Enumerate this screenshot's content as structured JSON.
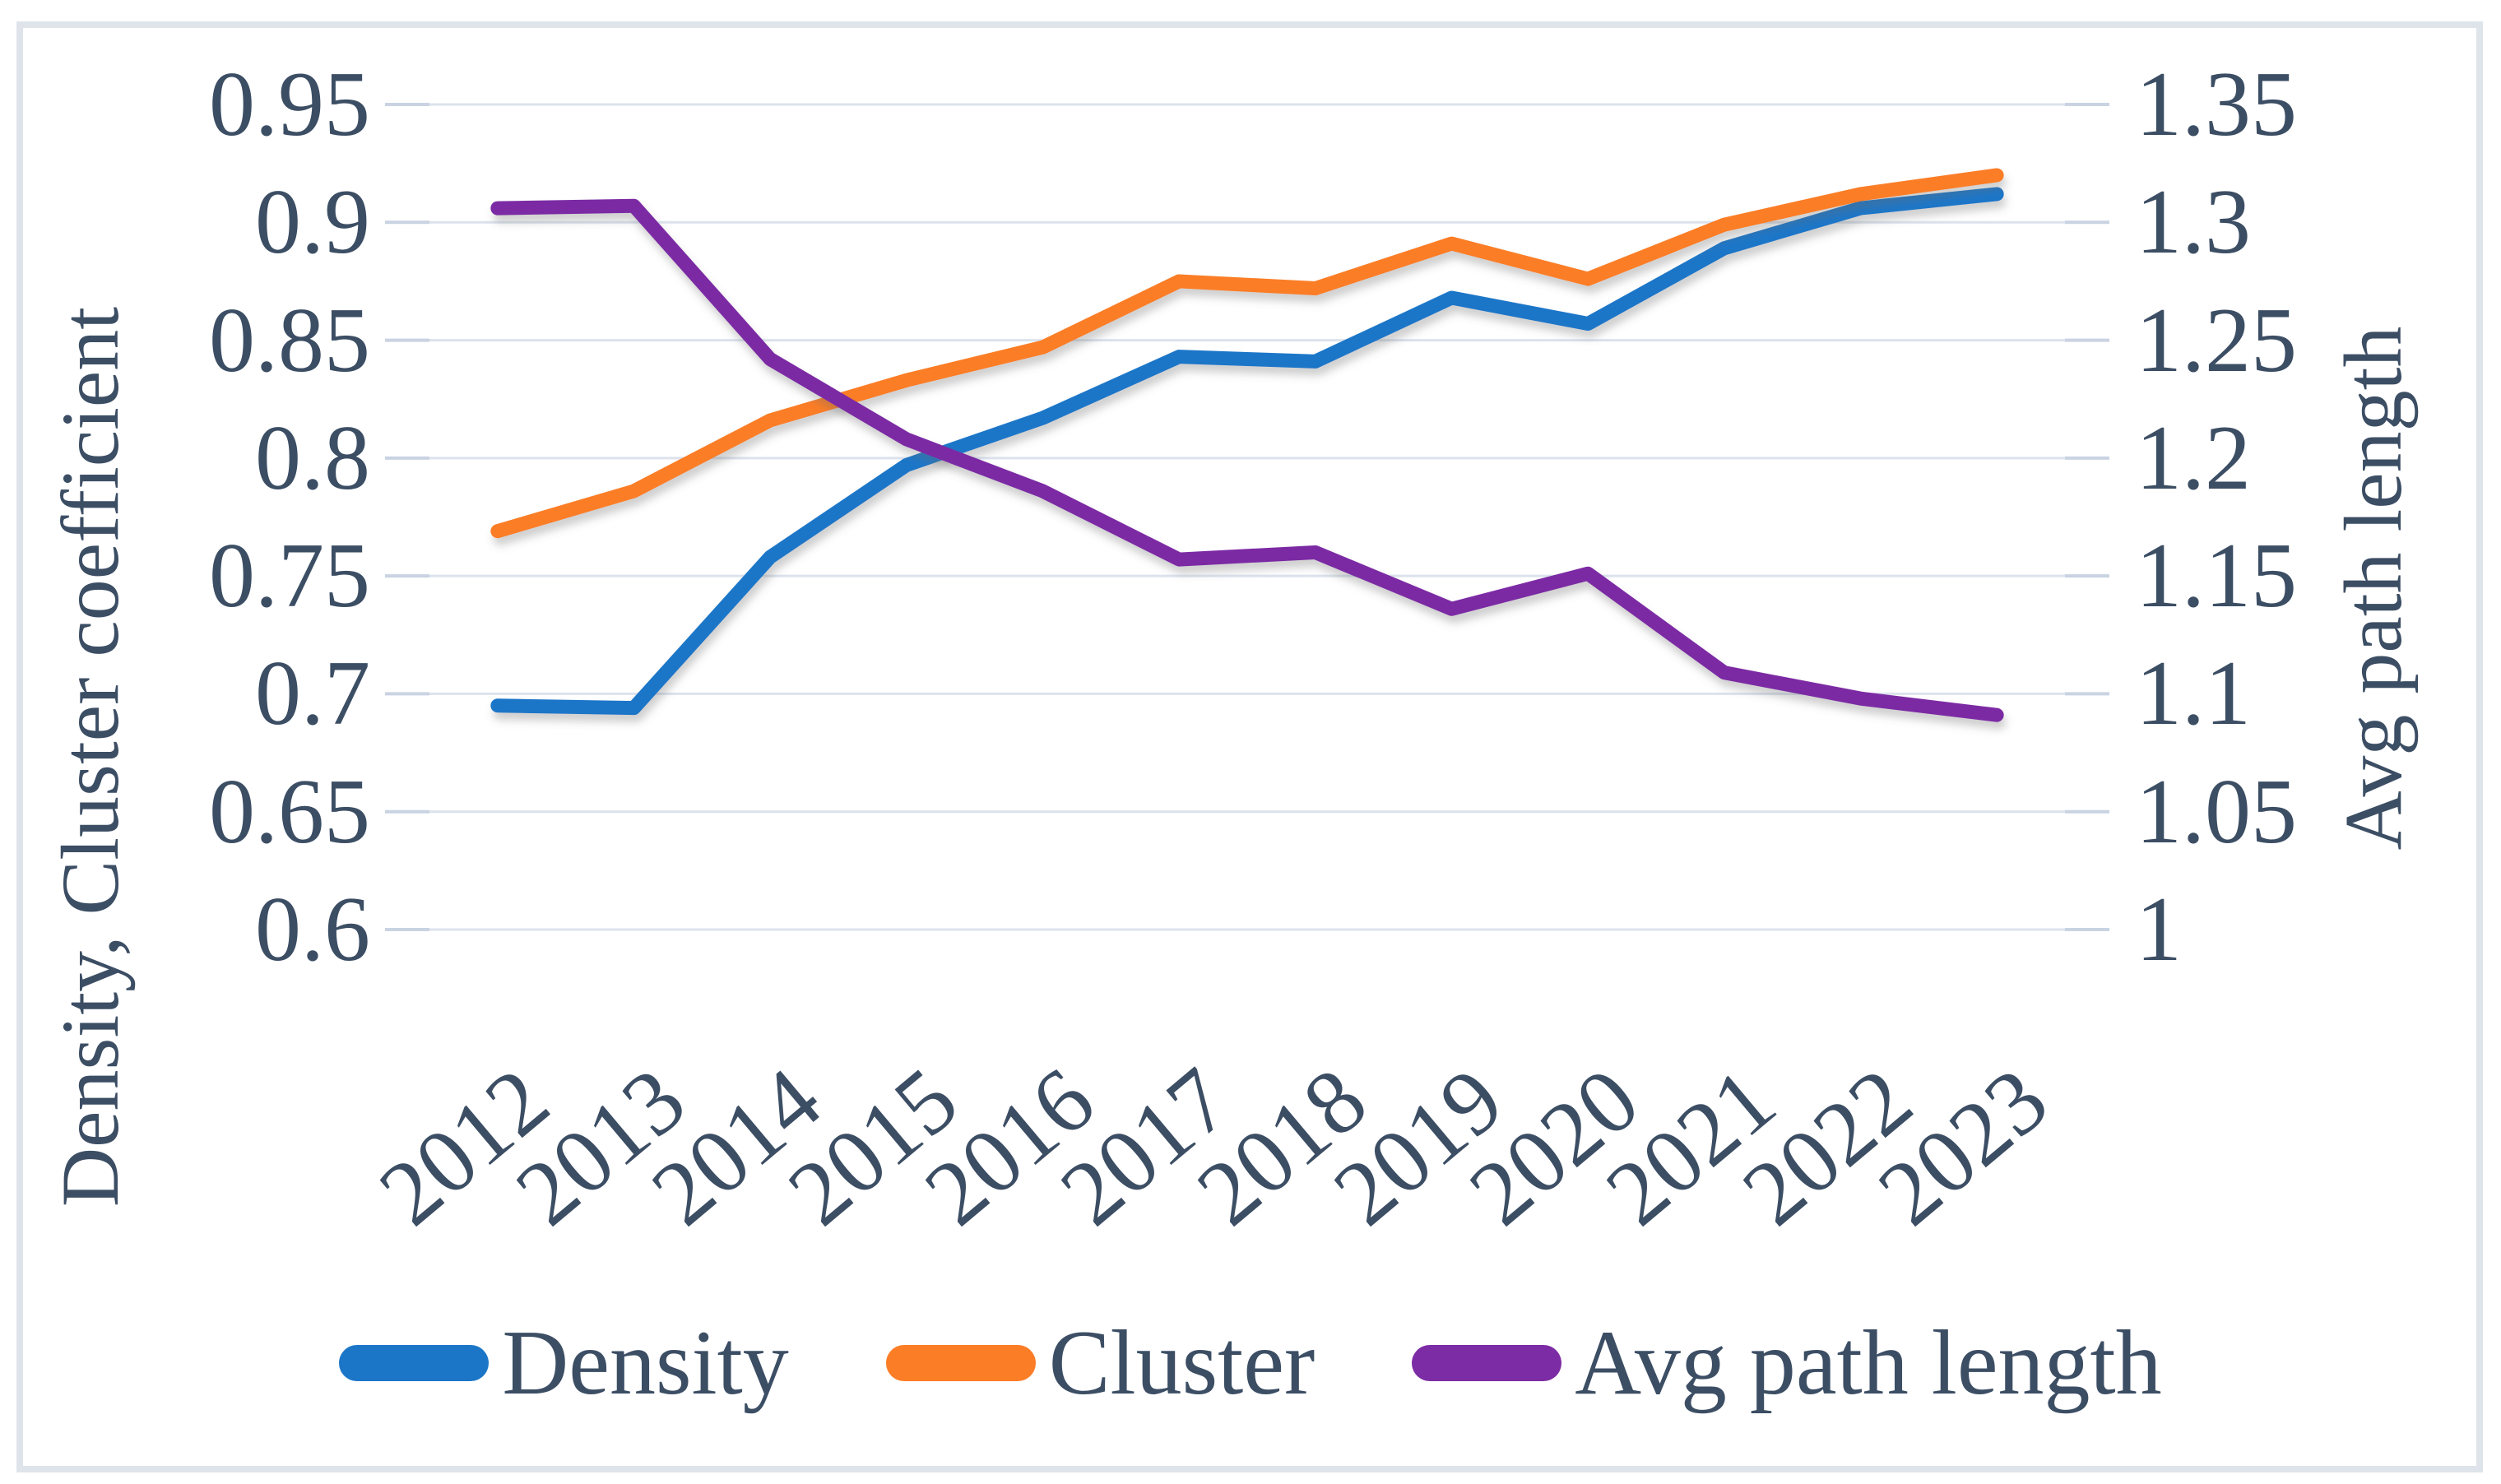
{
  "chart_data": {
    "type": "line",
    "title": "",
    "x": [
      2012,
      2013,
      2014,
      2015,
      2016,
      2017,
      2018,
      2019,
      2020,
      2021,
      2022,
      2023
    ],
    "series": [
      {
        "name": "Density",
        "axis": "left",
        "color": "#1C76C8",
        "values": [
          0.695,
          0.694,
          0.758,
          0.797,
          0.817,
          0.843,
          0.841,
          0.868,
          0.857,
          0.889,
          0.906,
          0.912
        ]
      },
      {
        "name": "Cluster",
        "axis": "left",
        "color": "#FB7D26",
        "values": [
          0.769,
          0.786,
          0.816,
          0.833,
          0.847,
          0.875,
          0.872,
          0.891,
          0.876,
          0.899,
          0.912,
          0.92
        ]
      },
      {
        "name": "Avg path length",
        "axis": "right",
        "color": "#7C2CA4",
        "values": [
          1.306,
          1.307,
          1.242,
          1.208,
          1.186,
          1.157,
          1.16,
          1.136,
          1.151,
          1.109,
          1.098,
          1.091
        ]
      }
    ],
    "left_axis": {
      "title": "Density, Cluster coefficient",
      "min": 0.6,
      "max": 0.95,
      "ticks": [
        "0.95",
        "0.9",
        "0.85",
        "0.8",
        "0.75",
        "0.7",
        "0.65",
        "0.6"
      ]
    },
    "right_axis": {
      "title": "Avg path length",
      "min": 1,
      "max": 1.35,
      "ticks": [
        "1.35",
        "1.3",
        "1.25",
        "1.2",
        "1.15",
        "1.1",
        "1.05",
        "1"
      ]
    },
    "x_axis": {
      "labels": [
        "2012",
        "2013",
        "2014",
        "2015",
        "2016",
        "2017",
        "2018",
        "2019",
        "2020",
        "2021",
        "2022",
        "2023"
      ]
    },
    "legend": {
      "position": "bottom",
      "entries": [
        "Density",
        "Cluster",
        "Avg path length"
      ]
    },
    "grid": true,
    "colors": {
      "text": "#3C4E64",
      "gridline": "#DCE3ED",
      "tick": "#C9D3E2",
      "frame_border": "#DFE4EB",
      "background": "#FFFFFF"
    }
  }
}
